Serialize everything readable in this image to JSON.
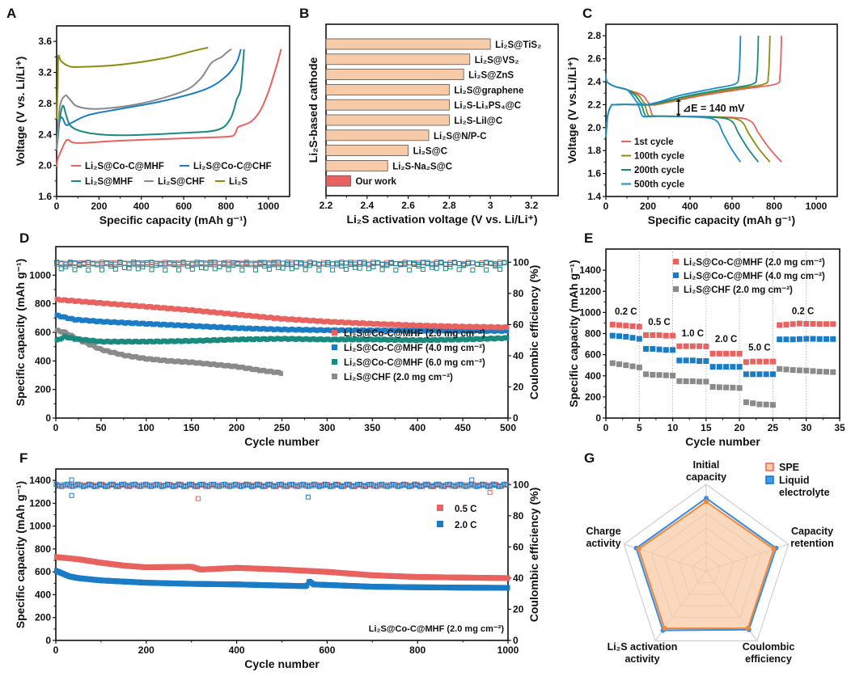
{
  "chart_data": [
    {
      "panel": "A",
      "type": "line",
      "xlabel": "Specific capacity (mAh g⁻¹)",
      "ylabel": "Voltage (V vs. Li/Li⁺)",
      "xlim": [
        0,
        1100
      ],
      "ylim": [
        1.6,
        3.8
      ],
      "xticks": [
        0,
        200,
        400,
        600,
        800,
        1000
      ],
      "yticks": [
        1.6,
        2.0,
        2.4,
        2.8,
        3.2,
        3.6
      ],
      "legend_position": "bottom-center",
      "series": [
        {
          "name": "Li₂S@Co-C@MHF",
          "color": "#e8625f",
          "points": [
            [
              0,
              1.98
            ],
            [
              5,
              2.08
            ],
            [
              20,
              2.18
            ],
            [
              40,
              2.3
            ],
            [
              55,
              2.33
            ],
            [
              100,
              2.29
            ],
            [
              300,
              2.32
            ],
            [
              600,
              2.35
            ],
            [
              800,
              2.37
            ],
            [
              840,
              2.4
            ],
            [
              855,
              2.49
            ],
            [
              880,
              2.52
            ],
            [
              920,
              2.57
            ],
            [
              960,
              2.7
            ],
            [
              1000,
              2.95
            ],
            [
              1040,
              3.3
            ],
            [
              1060,
              3.5
            ]
          ]
        },
        {
          "name": "Li₂S@Co-C@CHF",
          "color": "#1a7cc4",
          "points": [
            [
              0,
              2.3
            ],
            [
              10,
              2.52
            ],
            [
              20,
              2.62
            ],
            [
              30,
              2.6
            ],
            [
              45,
              2.52
            ],
            [
              70,
              2.55
            ],
            [
              150,
              2.65
            ],
            [
              300,
              2.73
            ],
            [
              500,
              2.83
            ],
            [
              700,
              2.98
            ],
            [
              800,
              3.15
            ],
            [
              850,
              3.33
            ],
            [
              870,
              3.5
            ]
          ]
        },
        {
          "name": "Li₂S@MHF",
          "color": "#1a8a7e",
          "points": [
            [
              0,
              2.2
            ],
            [
              15,
              2.6
            ],
            [
              30,
              2.77
            ],
            [
              45,
              2.65
            ],
            [
              70,
              2.5
            ],
            [
              150,
              2.42
            ],
            [
              300,
              2.39
            ],
            [
              600,
              2.42
            ],
            [
              760,
              2.46
            ],
            [
              820,
              2.6
            ],
            [
              850,
              2.85
            ],
            [
              870,
              3.0
            ],
            [
              885,
              3.5
            ]
          ]
        },
        {
          "name": "Li₂S@CHF",
          "color": "#8a8a8a",
          "points": [
            [
              0,
              2.2
            ],
            [
              15,
              2.75
            ],
            [
              40,
              2.9
            ],
            [
              60,
              2.86
            ],
            [
              100,
              2.76
            ],
            [
              200,
              2.73
            ],
            [
              400,
              2.8
            ],
            [
              600,
              2.96
            ],
            [
              680,
              3.12
            ],
            [
              730,
              3.32
            ],
            [
              780,
              3.4
            ],
            [
              800,
              3.45
            ],
            [
              825,
              3.5
            ]
          ]
        },
        {
          "name": "Li₂S",
          "color": "#8c8c10",
          "points": [
            [
              0,
              2.6
            ],
            [
              5,
              3.0
            ],
            [
              8,
              3.4
            ],
            [
              20,
              3.35
            ],
            [
              50,
              3.29
            ],
            [
              100,
              3.27
            ],
            [
              300,
              3.3
            ],
            [
              500,
              3.38
            ],
            [
              650,
              3.48
            ],
            [
              715,
              3.52
            ]
          ]
        }
      ]
    },
    {
      "panel": "B",
      "type": "bar",
      "orientation": "horizontal",
      "xlabel": "Li₂S activation voltage (V vs. Li/Li⁺)",
      "ylabel": "Li₂S-based cathode",
      "xlim": [
        2.2,
        3.33
      ],
      "xticks": [
        2.2,
        2.4,
        2.6,
        2.8,
        3.0,
        3.2
      ],
      "categories": [
        "Li₂S@TiS₂",
        "Li₂S@VS₂",
        "Li₂S@ZnS",
        "Li₂S@graphene",
        "Li₂S-Li₃PS₄@C",
        "Li₂S-LiI@C",
        "Li₂S@N/P-C",
        "Li₂S@C",
        "Li₂S-Na₂S@C",
        "Our work"
      ],
      "values": [
        3.0,
        2.9,
        2.87,
        2.8,
        2.8,
        2.8,
        2.7,
        2.6,
        2.5,
        2.32
      ],
      "colors": [
        "#f7cba8",
        "#f7cba8",
        "#f7cba8",
        "#f7cba8",
        "#f7cba8",
        "#f7cba8",
        "#f7cba8",
        "#f7cba8",
        "#f7cba8",
        "#e8625f"
      ]
    },
    {
      "panel": "C",
      "type": "line",
      "xlabel": "Specific capacity (mAh g⁻¹)",
      "ylabel": "Voltage (V vs.Li/Li⁺)",
      "xlim": [
        0,
        1100
      ],
      "ylim": [
        1.4,
        2.9
      ],
      "xticks": [
        0,
        200,
        400,
        600,
        800,
        1000
      ],
      "yticks": [
        1.4,
        1.6,
        1.8,
        2.0,
        2.2,
        2.4,
        2.6,
        2.8
      ],
      "annotation": "⊿E = 140 mV",
      "legend_position": "bottom-left",
      "series": [
        {
          "name": "1st cycle",
          "color": "#e8625f",
          "charge_end": 835,
          "discharge_end": 835,
          "discharge_knee": 215
        },
        {
          "name": "100th cycle",
          "color": "#8c8c10",
          "charge_end": 780,
          "discharge_end": 780,
          "discharge_knee": 195
        },
        {
          "name": "200th cycle",
          "color": "#1a8a7e",
          "charge_end": 725,
          "discharge_end": 725,
          "discharge_knee": 180
        },
        {
          "name": "500th cycle",
          "color": "#1a8ccc",
          "charge_end": 640,
          "discharge_end": 640,
          "discharge_knee": 165
        }
      ]
    },
    {
      "panel": "D",
      "type": "scatter",
      "xlabel": "Cycle number",
      "ylabel": "Specific capacity (mAh g⁻¹)",
      "y2label": "Coulombic efficiency (%)",
      "xlim": [
        0,
        500
      ],
      "ylim": [
        0,
        1200
      ],
      "y2lim": [
        0,
        110
      ],
      "xticks": [
        0,
        50,
        100,
        150,
        200,
        250,
        300,
        350,
        400,
        450,
        500
      ],
      "yticks": [
        0,
        200,
        400,
        600,
        800,
        1000
      ],
      "y2ticks": [
        0,
        20,
        40,
        60,
        80,
        100
      ],
      "legend_position": "lower-right",
      "series": [
        {
          "name": "Li₂S@Co-C@MHF (2.0 mg cm⁻²)",
          "color": "#e8625f",
          "capacity": [
            [
              0,
              830
            ],
            [
              50,
              805
            ],
            [
              100,
              780
            ],
            [
              150,
              755
            ],
            [
              200,
              725
            ],
            [
              250,
              695
            ],
            [
              300,
              675
            ],
            [
              350,
              660
            ],
            [
              400,
              648
            ],
            [
              450,
              640
            ],
            [
              500,
              635
            ]
          ],
          "ce": 99.5
        },
        {
          "name": "Li₂S@Co-C@MHF (4.0 mg cm⁻²)",
          "color": "#1a7cc4",
          "capacity": [
            [
              0,
              720
            ],
            [
              20,
              690
            ],
            [
              50,
              675
            ],
            [
              100,
              660
            ],
            [
              150,
              645
            ],
            [
              200,
              630
            ],
            [
              250,
              620
            ],
            [
              300,
              615
            ],
            [
              400,
              612
            ],
            [
              500,
              610
            ]
          ],
          "ce": 99
        },
        {
          "name": "Li₂S@Co-C@MHF (6.0 mg cm⁻²)",
          "color": "#1a8a7e",
          "capacity": [
            [
              0,
              540
            ],
            [
              10,
              570
            ],
            [
              20,
              555
            ],
            [
              50,
              535
            ],
            [
              100,
              535
            ],
            [
              150,
              540
            ],
            [
              200,
              550
            ],
            [
              250,
              555
            ],
            [
              300,
              550
            ],
            [
              350,
              550
            ],
            [
              400,
              545
            ],
            [
              450,
              550
            ],
            [
              500,
              560
            ]
          ],
          "ce": 97.5
        },
        {
          "name": "Li₂S@CHF (2.0 mg cm⁻²)",
          "color": "#8a8a8a",
          "capacity": [
            [
              0,
              615
            ],
            [
              10,
              600
            ],
            [
              25,
              550
            ],
            [
              50,
              480
            ],
            [
              75,
              440
            ],
            [
              100,
              415
            ],
            [
              125,
              400
            ],
            [
              150,
              390
            ],
            [
              175,
              375
            ],
            [
              200,
              360
            ],
            [
              225,
              335
            ],
            [
              250,
              315
            ]
          ],
          "ce": 99
        }
      ]
    },
    {
      "panel": "E",
      "type": "scatter",
      "xlabel": "Cycle number",
      "ylabel": "Specific capacity (mAh g⁻¹)",
      "xlim": [
        0,
        35
      ],
      "ylim": [
        0,
        1600
      ],
      "xticks": [
        0,
        5,
        10,
        15,
        20,
        25,
        30,
        35
      ],
      "yticks": [
        0,
        200,
        400,
        600,
        800,
        1000,
        1200,
        1400
      ],
      "rate_labels": [
        {
          "text": "0.2 C",
          "x": 3,
          "y": 980
        },
        {
          "text": "0.5 C",
          "x": 8,
          "y": 880
        },
        {
          "text": "1.0 C",
          "x": 13,
          "y": 775
        },
        {
          "text": "2.0 C",
          "x": 18,
          "y": 720
        },
        {
          "text": "5.0 C",
          "x": 23,
          "y": 640
        },
        {
          "text": "0.2 C",
          "x": 29.5,
          "y": 985
        }
      ],
      "legend_position": "top-right",
      "series": [
        {
          "name": "Li₂S@Co-C@MHF (2.0 mg cm⁻²)",
          "color": "#e8625f",
          "values": [
            885,
            880,
            875,
            870,
            865,
            785,
            785,
            785,
            780,
            780,
            680,
            680,
            680,
            680,
            678,
            610,
            610,
            610,
            610,
            610,
            530,
            535,
            535,
            535,
            535,
            880,
            885,
            890,
            895,
            892,
            892,
            890,
            890,
            890
          ]
        },
        {
          "name": "Li₂S@Co-C@MHF (4.0 mg cm⁻²)",
          "color": "#1a7cc4",
          "values": [
            780,
            775,
            770,
            760,
            750,
            655,
            655,
            650,
            645,
            645,
            545,
            545,
            545,
            540,
            540,
            485,
            485,
            485,
            485,
            485,
            415,
            415,
            415,
            415,
            415,
            745,
            745,
            745,
            748,
            750,
            750,
            748,
            748,
            748
          ]
        },
        {
          "name": "Li₂S@CHF (2.0 mg cm⁻²)",
          "color": "#8a8a8a",
          "values": [
            520,
            510,
            500,
            490,
            480,
            415,
            410,
            408,
            405,
            402,
            350,
            348,
            348,
            345,
            345,
            295,
            292,
            290,
            288,
            285,
            150,
            140,
            130,
            128,
            125,
            465,
            460,
            455,
            452,
            450,
            445,
            440,
            438,
            435
          ]
        }
      ]
    },
    {
      "panel": "F",
      "type": "scatter",
      "xlabel": "Cycle number",
      "ylabel": "Specific capacity (mAh g⁻¹)",
      "y2label": "Coulombic efficiency (%)",
      "xlim": [
        0,
        1000
      ],
      "ylim": [
        0,
        1500
      ],
      "y2lim": [
        0,
        110
      ],
      "xticks": [
        0,
        200,
        400,
        600,
        800,
        1000
      ],
      "yticks": [
        0,
        200,
        400,
        600,
        800,
        1000,
        1200,
        1400
      ],
      "y2ticks": [
        0,
        20,
        40,
        60,
        80,
        100
      ],
      "annotation": "Li₂S@Co-C@MHF (2.0 mg cm⁻²)",
      "legend_position": "upper-right",
      "series": [
        {
          "name": "0.5 C",
          "color": "#e8625f",
          "capacity": [
            [
              0,
              730
            ],
            [
              50,
              710
            ],
            [
              100,
              680
            ],
            [
              150,
              655
            ],
            [
              200,
              640
            ],
            [
              300,
              645
            ],
            [
              320,
              620
            ],
            [
              400,
              635
            ],
            [
              500,
              620
            ],
            [
              600,
              600
            ],
            [
              700,
              570
            ],
            [
              800,
              555
            ],
            [
              900,
              550
            ],
            [
              1000,
              545
            ]
          ],
          "ce": 99.5
        },
        {
          "name": "2.0 C",
          "color": "#1a7cc4",
          "capacity": [
            [
              0,
              610
            ],
            [
              30,
              560
            ],
            [
              50,
              545
            ],
            [
              100,
              525
            ],
            [
              200,
              505
            ],
            [
              300,
              495
            ],
            [
              400,
              490
            ],
            [
              500,
              480
            ],
            [
              555,
              475
            ],
            [
              560,
              520
            ],
            [
              570,
              490
            ],
            [
              700,
              470
            ],
            [
              800,
              465
            ],
            [
              900,
              462
            ],
            [
              1000,
              460
            ]
          ],
          "ce": 99.5
        }
      ]
    },
    {
      "panel": "G",
      "type": "radar",
      "axes": [
        "Initial capacity",
        "Capacity retention",
        "Coulombic efficiency",
        "Li₂S activation activity",
        "Charge activity"
      ],
      "rmax": 1.0,
      "grid_levels": 6,
      "legend_position": "top-right",
      "series": [
        {
          "name": "SPE",
          "color": "#f08a3a",
          "fill": "#f7cba8",
          "values": [
            0.8,
            0.82,
            0.82,
            0.82,
            0.82
          ]
        },
        {
          "name": "Liquid electrolyte",
          "color": "#3a8ee0",
          "values": [
            0.84,
            0.85,
            0.84,
            0.85,
            0.85
          ]
        }
      ]
    }
  ],
  "panel_labels": [
    "A",
    "B",
    "C",
    "D",
    "E",
    "F",
    "G"
  ]
}
